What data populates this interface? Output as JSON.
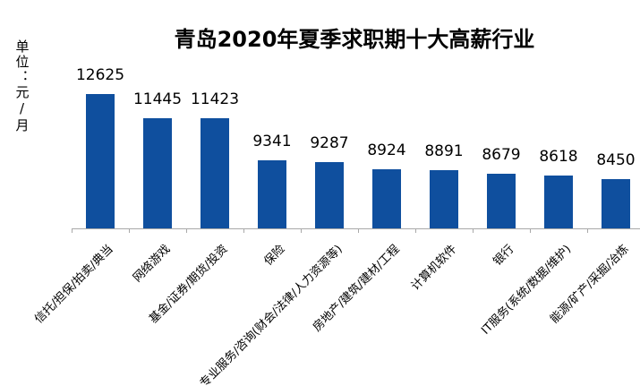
{
  "title": "青岛2020年夏季求职期十大高薪行业",
  "y_axis_unit": "单位：元/月",
  "colors": {
    "bar": "#0F4F9E",
    "axis": "#A9A9A9",
    "text": "#000000",
    "background": "#FFFFFF"
  },
  "chart_data": {
    "type": "bar",
    "title": "青岛2020年夏季求职期十大高薪行业",
    "ylabel": "单位：元/月",
    "xlabel": "",
    "categories": [
      "信托/担保/拍卖/典当",
      "网络游戏",
      "基金/证券/期货/投资",
      "保险",
      "专业服务/咨询(财会/法律/人力资源等)",
      "房地产/建筑/建材/工程",
      "计算机软件",
      "银行",
      "IT服务(系统/数据/维护)",
      "能源/矿产/采掘/冶炼"
    ],
    "values": [
      12625,
      11445,
      11423,
      9341,
      9287,
      8924,
      8891,
      8679,
      8618,
      8450
    ],
    "data_labels": true,
    "ylim": [
      6000,
      13000
    ],
    "grid": false,
    "legend": false,
    "category_label_rotation_deg": -45
  }
}
